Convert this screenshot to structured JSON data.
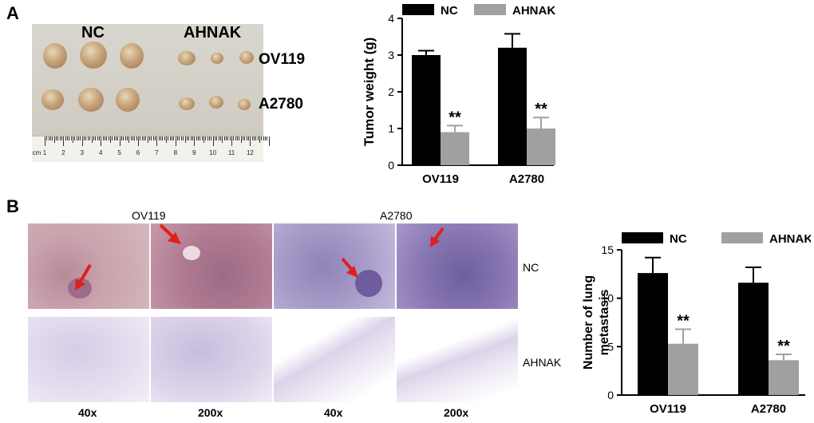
{
  "panel_a": {
    "letter": "A",
    "photo": {
      "group_labels": [
        "NC",
        "AHNAK"
      ],
      "row_labels": [
        "OV119",
        "A2780"
      ],
      "ruler_unit": "cm",
      "ruler_numbers": [
        "1",
        "2",
        "3",
        "4",
        "5",
        "6",
        "7",
        "8",
        "9",
        "10",
        "11",
        "12"
      ]
    }
  },
  "panel_b": {
    "letter": "B",
    "column_titles": [
      "OV119",
      "A2780"
    ],
    "row_labels": [
      "NC",
      "AHNAK"
    ],
    "magnifications": [
      "40x",
      "200x",
      "40x",
      "200x"
    ]
  },
  "chart_data": [
    {
      "type": "bar",
      "categories": [
        "OV119",
        "A2780"
      ],
      "series": [
        {
          "name": "NC",
          "values": [
            3.0,
            3.2
          ],
          "errors": [
            0.12,
            0.38
          ],
          "color": "#000000"
        },
        {
          "name": "AHNAK",
          "values": [
            0.9,
            1.0
          ],
          "errors": [
            0.18,
            0.3
          ],
          "color": "#a0a0a0"
        }
      ],
      "significance": [
        "**",
        "**"
      ],
      "ylabel": "Tumor weight (g)",
      "ylim": [
        0,
        4
      ],
      "yticks": [
        "0",
        "1",
        "2",
        "3",
        "4"
      ],
      "legend": "top",
      "grid": false
    },
    {
      "type": "bar",
      "categories": [
        "OV119",
        "A2780"
      ],
      "series": [
        {
          "name": "NC",
          "values": [
            12.6,
            11.6
          ],
          "errors": [
            1.6,
            1.6
          ],
          "color": "#000000"
        },
        {
          "name": "AHNAK",
          "values": [
            5.3,
            3.6
          ],
          "errors": [
            1.5,
            0.6
          ],
          "color": "#a0a0a0"
        }
      ],
      "significance": [
        "**",
        "**"
      ],
      "ylabel": "Number of lung metastasis",
      "ylim": [
        0,
        15
      ],
      "yticks": [
        "0",
        "5",
        "10",
        "15"
      ],
      "legend": "top",
      "grid": false
    }
  ]
}
